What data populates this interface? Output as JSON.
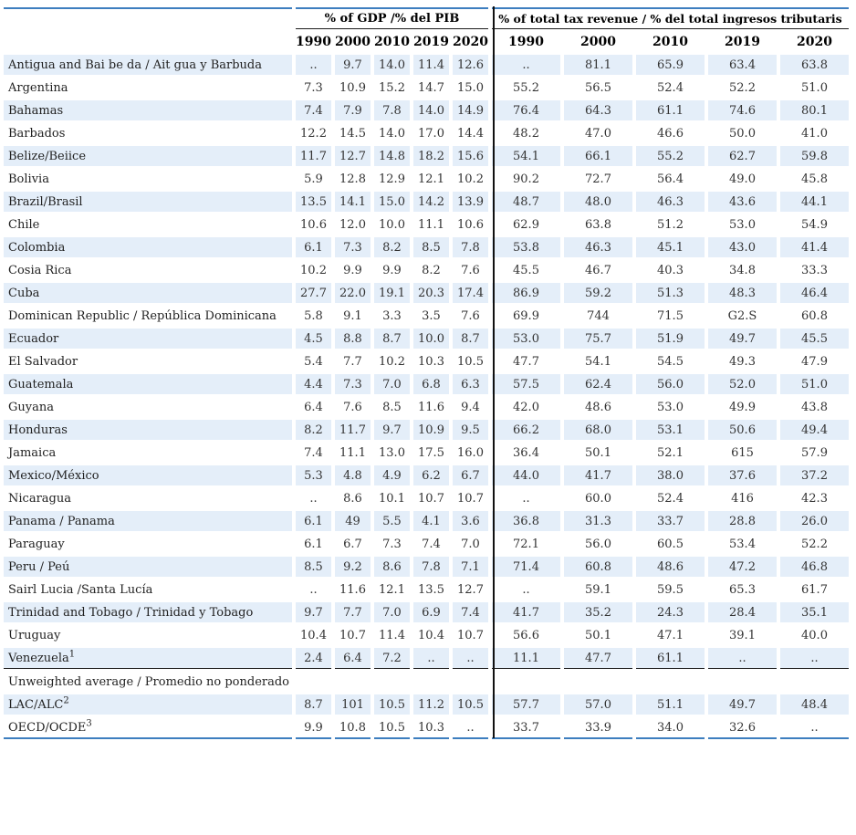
{
  "colors": {
    "stripe": "#e4eef9",
    "rule_blue": "#3d7ebf",
    "rule_dark": "#1c1c1c",
    "divider": "#111111"
  },
  "header": {
    "gdp_group": "% of GDP /% del PIB",
    "revenue_group": "% of total tax revenue / % del total ingresos tributaris",
    "years": [
      "1990",
      "2000",
      "2010",
      "2019",
      "2020"
    ]
  },
  "missing_marker": "..",
  "table": {
    "rows": [
      {
        "name": "Antigua and Bai be da / Ait gua y Barbuda",
        "sup": "",
        "gdp": [
          "..",
          "9.7",
          "14.0",
          "11.4",
          "12.6"
        ],
        "revenue": [
          "..",
          "81.1",
          "65.9",
          "63.4",
          "63.8"
        ]
      },
      {
        "name": "Argentina",
        "sup": "",
        "gdp": [
          "7.3",
          "10.9",
          "15.2",
          "14.7",
          "15.0"
        ],
        "revenue": [
          "55.2",
          "56.5",
          "52.4",
          "52.2",
          "51.0"
        ]
      },
      {
        "name": "Bahamas",
        "sup": "",
        "gdp": [
          "7.4",
          "7.9",
          "7.8",
          "14.0",
          "14.9"
        ],
        "revenue": [
          "76.4",
          "64.3",
          "61.1",
          "74.6",
          "80.1"
        ]
      },
      {
        "name": "Barbados",
        "sup": "",
        "gdp": [
          "12.2",
          "14.5",
          "14.0",
          "17.0",
          "14.4"
        ],
        "revenue": [
          "48.2",
          "47.0",
          "46.6",
          "50.0",
          "41.0"
        ]
      },
      {
        "name": "Belize/Beiice",
        "sup": "",
        "gdp": [
          "11.7",
          "12.7",
          "14.8",
          "18.2",
          "15.6"
        ],
        "revenue": [
          "54.1",
          "66.1",
          "55.2",
          "62.7",
          "59.8"
        ]
      },
      {
        "name": "Bolivia",
        "sup": "",
        "gdp": [
          "5.9",
          "12.8",
          "12.9",
          "12.1",
          "10.2"
        ],
        "revenue": [
          "90.2",
          "72.7",
          "56.4",
          "49.0",
          "45.8"
        ]
      },
      {
        "name": "Brazil/Brasil",
        "sup": "",
        "gdp": [
          "13.5",
          "14.1",
          "15.0",
          "14.2",
          "13.9"
        ],
        "revenue": [
          "48.7",
          "48.0",
          "46.3",
          "43.6",
          "44.1"
        ]
      },
      {
        "name": "Chile",
        "sup": "",
        "gdp": [
          "10.6",
          "12.0",
          "10.0",
          "11.1",
          "10.6"
        ],
        "revenue": [
          "62.9",
          "63.8",
          "51.2",
          "53.0",
          "54.9"
        ]
      },
      {
        "name": "Colombia",
        "sup": "",
        "gdp": [
          "6.1",
          "7.3",
          "8.2",
          "8.5",
          "7.8"
        ],
        "revenue": [
          "53.8",
          "46.3",
          "45.1",
          "43.0",
          "41.4"
        ]
      },
      {
        "name": "Cosia Rica",
        "sup": "",
        "gdp": [
          "10.2",
          "9.9",
          "9.9",
          "8.2",
          "7.6"
        ],
        "revenue": [
          "45.5",
          "46.7",
          "40.3",
          "34.8",
          "33.3"
        ]
      },
      {
        "name": "Cuba",
        "sup": "",
        "gdp": [
          "27.7",
          "22.0",
          "19.1",
          "20.3",
          "17.4"
        ],
        "revenue": [
          "86.9",
          "59.2",
          "51.3",
          "48.3",
          "46.4"
        ]
      },
      {
        "name": "Dominican Republic / República Dominicana",
        "sup": "",
        "gdp": [
          "5.8",
          "9.1",
          "3.3",
          "3.5",
          "7.6"
        ],
        "revenue": [
          "69.9",
          "744",
          "71.5",
          "G2.S",
          "60.8"
        ]
      },
      {
        "name": "Ecuador",
        "sup": "",
        "gdp": [
          "4.5",
          "8.8",
          "8.7",
          "10.0",
          "8.7"
        ],
        "revenue": [
          "53.0",
          "75.7",
          "51.9",
          "49.7",
          "45.5"
        ]
      },
      {
        "name": "El Salvador",
        "sup": "",
        "gdp": [
          "5.4",
          "7.7",
          "10.2",
          "10.3",
          "10.5"
        ],
        "revenue": [
          "47.7",
          "54.1",
          "54.5",
          "49.3",
          "47.9"
        ]
      },
      {
        "name": "Guatemala",
        "sup": "",
        "gdp": [
          "4.4",
          "7.3",
          "7.0",
          "6.8",
          "6.3"
        ],
        "revenue": [
          "57.5",
          "62.4",
          "56.0",
          "52.0",
          "51.0"
        ]
      },
      {
        "name": "Guyana",
        "sup": "",
        "gdp": [
          "6.4",
          "7.6",
          "8.5",
          "11.6",
          "9.4"
        ],
        "revenue": [
          "42.0",
          "48.6",
          "53.0",
          "49.9",
          "43.8"
        ]
      },
      {
        "name": "Honduras",
        "sup": "",
        "gdp": [
          "8.2",
          "11.7",
          "9.7",
          "10.9",
          "9.5"
        ],
        "revenue": [
          "66.2",
          "68.0",
          "53.1",
          "50.6",
          "49.4"
        ]
      },
      {
        "name": "Jamaica",
        "sup": "",
        "gdp": [
          "7.4",
          "11.1",
          "13.0",
          "17.5",
          "16.0"
        ],
        "revenue": [
          "36.4",
          "50.1",
          "52.1",
          "615",
          "57.9"
        ]
      },
      {
        "name": "Mexico/México",
        "sup": "",
        "gdp": [
          "5.3",
          "4.8",
          "4.9",
          "6.2",
          "6.7"
        ],
        "revenue": [
          "44.0",
          "41.7",
          "38.0",
          "37.6",
          "37.2"
        ]
      },
      {
        "name": "Nicaragua",
        "sup": "",
        "gdp": [
          "..",
          "8.6",
          "10.1",
          "10.7",
          "10.7"
        ],
        "revenue": [
          "..",
          "60.0",
          "52.4",
          "416",
          "42.3"
        ]
      },
      {
        "name": "Panama / Panama",
        "sup": "",
        "gdp": [
          "6.1",
          "49",
          "5.5",
          "4.1",
          "3.6"
        ],
        "revenue": [
          "36.8",
          "31.3",
          "33.7",
          "28.8",
          "26.0"
        ]
      },
      {
        "name": "Paraguay",
        "sup": "",
        "gdp": [
          "6.1",
          "6.7",
          "7.3",
          "7.4",
          "7.0"
        ],
        "revenue": [
          "72.1",
          "56.0",
          "60.5",
          "53.4",
          "52.2"
        ]
      },
      {
        "name": "Peru / Peú",
        "sup": "",
        "gdp": [
          "8.5",
          "9.2",
          "8.6",
          "7.8",
          "7.1"
        ],
        "revenue": [
          "71.4",
          "60.8",
          "48.6",
          "47.2",
          "46.8"
        ]
      },
      {
        "name": "Sairl Lucia /Santa Lucía",
        "sup": "",
        "gdp": [
          "..",
          "11.6",
          "12.1",
          "13.5",
          "12.7"
        ],
        "revenue": [
          "..",
          "59.1",
          "59.5",
          "65.3",
          "61.7"
        ]
      },
      {
        "name": "Trinidad and Tobago / Trinidad y Tobago",
        "sup": "",
        "gdp": [
          "9.7",
          "7.7",
          "7.0",
          "6.9",
          "7.4"
        ],
        "revenue": [
          "41.7",
          "35.2",
          "24.3",
          "28.4",
          "35.1"
        ]
      },
      {
        "name": "Uruguay",
        "sup": "",
        "gdp": [
          "10.4",
          "10.7",
          "11.4",
          "10.4",
          "10.7"
        ],
        "revenue": [
          "56.6",
          "50.1",
          "47.1",
          "39.1",
          "40.0"
        ]
      },
      {
        "name": "Venezuela",
        "sup": "1",
        "gdp": [
          "2.4",
          "6.4",
          "7.2",
          "..",
          ".."
        ],
        "revenue": [
          "11.1",
          "47.7",
          "61.1",
          "..",
          ".."
        ]
      },
      {
        "name": "Unweighted average / Promedio no ponderado",
        "sup": "",
        "section": true,
        "gdp": [
          "",
          "",
          "",
          "",
          ""
        ],
        "revenue": [
          "",
          "",
          "",
          "",
          ""
        ]
      },
      {
        "name": "LAC/ALC",
        "sup": "2",
        "gdp": [
          "8.7",
          "101",
          "10.5",
          "11.2",
          "10.5"
        ],
        "revenue": [
          "57.7",
          "57.0",
          "51.1",
          "49.7",
          "48.4"
        ]
      },
      {
        "name": "OECD/OCDE",
        "sup": "3",
        "gdp": [
          "9.9",
          "10.8",
          "10.5",
          "10.3",
          ".."
        ],
        "revenue": [
          "33.7",
          "33.9",
          "34.0",
          "32.6",
          ".."
        ]
      }
    ]
  }
}
